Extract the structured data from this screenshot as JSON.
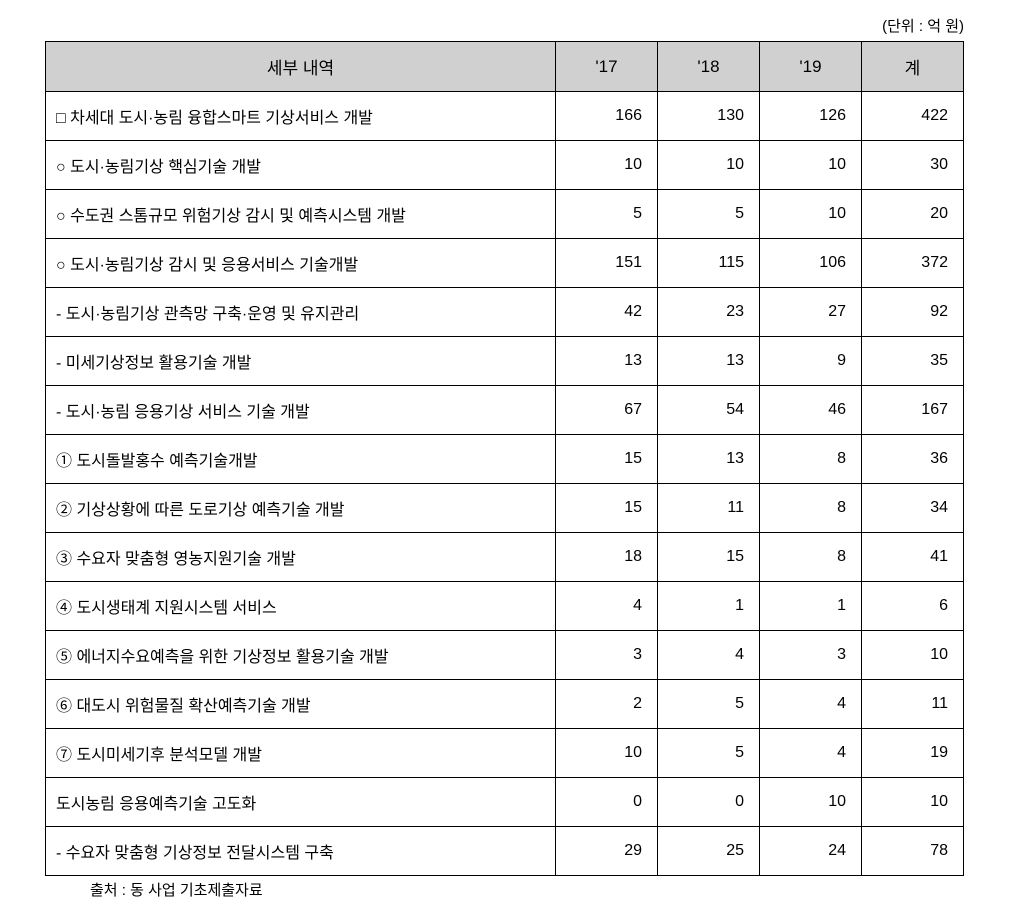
{
  "unit": "(단위 : 억 원)",
  "header": {
    "col_desc": "세부 내역",
    "col_y17": "'17",
    "col_y18": "'18",
    "col_y19": "'19",
    "col_total": "계"
  },
  "rows": [
    {
      "desc": "□ 차세대 도시·농림 융합스마트 기상서비스 개발",
      "y17": "166",
      "y18": "130",
      "y19": "126",
      "total": "422",
      "indent": 1
    },
    {
      "desc": "○ 도시·농림기상 핵심기술 개발",
      "y17": "10",
      "y18": "10",
      "y19": "10",
      "total": "30",
      "indent": 1
    },
    {
      "desc": "○ 수도권 스톰규모 위험기상 감시 및 예측시스템 개발",
      "y17": "5",
      "y18": "5",
      "y19": "10",
      "total": "20",
      "indent": 1
    },
    {
      "desc": "○ 도시·농림기상 감시 및 응용서비스 기술개발",
      "y17": "151",
      "y18": "115",
      "y19": "106",
      "total": "372",
      "indent": 1
    },
    {
      "desc": "- 도시·농림기상 관측망 구축·운영 및 유지관리",
      "y17": "42",
      "y18": "23",
      "y19": "27",
      "total": "92",
      "indent": 2
    },
    {
      "desc": "- 미세기상정보 활용기술 개발",
      "y17": "13",
      "y18": "13",
      "y19": "9",
      "total": "35",
      "indent": 2
    },
    {
      "desc": "- 도시·농림 응용기상 서비스 기술 개발",
      "y17": "67",
      "y18": "54",
      "y19": "46",
      "total": "167",
      "indent": 2
    },
    {
      "desc": "① 도시돌발홍수 예측기술개발",
      "y17": "15",
      "y18": "13",
      "y19": "8",
      "total": "36",
      "indent": 3
    },
    {
      "desc": "② 기상상황에 따른 도로기상 예측기술 개발",
      "y17": "15",
      "y18": "11",
      "y19": "8",
      "total": "34",
      "indent": 3
    },
    {
      "desc": "③ 수요자 맞춤형 영농지원기술 개발",
      "y17": "18",
      "y18": "15",
      "y19": "8",
      "total": "41",
      "indent": 3
    },
    {
      "desc": "④ 도시생태계 지원시스템 서비스",
      "y17": "4",
      "y18": "1",
      "y19": "1",
      "total": "6",
      "indent": 3
    },
    {
      "desc": "⑤  에너지수요예측을 위한 기상정보 활용기술 개발",
      "y17": "3",
      "y18": "4",
      "y19": "3",
      "total": "10",
      "indent": 3
    },
    {
      "desc": "⑥ 대도시 위험물질 확산예측기술 개발",
      "y17": "2",
      "y18": "5",
      "y19": "4",
      "total": "11",
      "indent": 3
    },
    {
      "desc": "⑦ 도시미세기후 분석모델 개발",
      "y17": "10",
      "y18": "5",
      "y19": "4",
      "total": "19",
      "indent": 3
    },
    {
      "desc": "도시농림 응용예측기술 고도화",
      "y17": "0",
      "y18": "0",
      "y19": "10",
      "total": "10",
      "indent": 4
    },
    {
      "desc": "- 수요자 맞춤형 기상정보 전달시스템 구축",
      "y17": "29",
      "y18": "25",
      "y19": "24",
      "total": "78",
      "indent": 2
    }
  ],
  "source": "출처 : 동 사업 기초제출자료",
  "styling": {
    "header_bg_color": "#d0d0d0",
    "border_color": "#000000",
    "background_color": "#ffffff",
    "text_color": "#000000",
    "font_family": "Malgun Gothic",
    "header_fontsize": 17,
    "body_fontsize": 16,
    "caption_fontsize": 15,
    "col_widths": {
      "desc": 510,
      "num": 102
    }
  }
}
